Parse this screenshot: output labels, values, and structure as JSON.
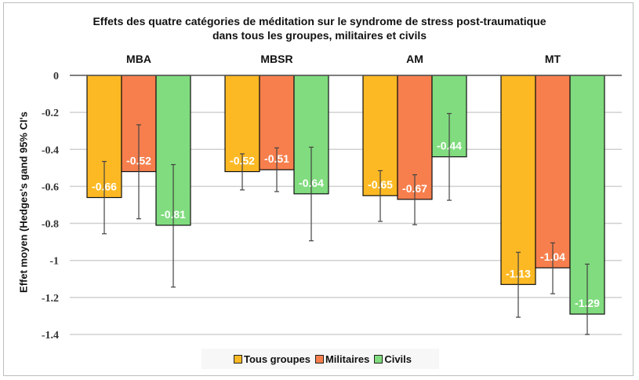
{
  "chart_data": {
    "type": "bar",
    "title": "Effets des quatre catégories de méditation sur le syndrome de stress post-traumatique",
    "subtitle": "dans tous les groupes, militaires et civils",
    "ylabel": "Effet moyen (Hedges's gand 95% CI's",
    "xlabel": "",
    "ylim": [
      -1.4,
      0
    ],
    "yticks": [
      "0",
      "-0.2",
      "-0.4",
      "-0.6",
      "-0.8",
      "-1",
      "-1.2",
      "-1.4"
    ],
    "grid": true,
    "legend_placement": "bottom",
    "categories": [
      "MBA",
      "MBSR",
      "AM",
      "MT"
    ],
    "series": [
      {
        "name": "Tous groupes",
        "color": "#FDB924",
        "values": [
          -0.66,
          -0.52,
          -0.65,
          -1.13
        ],
        "labels": [
          "-0.66",
          "-0.52",
          "-0.65",
          "-1.13"
        ],
        "ci": [
          [
            -0.465,
            -0.856
          ],
          [
            -0.424,
            -0.619
          ],
          [
            -0.515,
            -0.789
          ],
          [
            -0.956,
            -1.307
          ]
        ]
      },
      {
        "name": "Militaires",
        "color": "#F77F4D",
        "values": [
          -0.52,
          -0.51,
          -0.67,
          -1.04
        ],
        "labels": [
          "-0.52",
          "-0.51",
          "-0.67",
          "-1.04"
        ],
        "ci": [
          [
            -0.267,
            -0.775
          ],
          [
            -0.392,
            -0.628
          ],
          [
            -0.537,
            -0.807
          ],
          [
            -0.905,
            -1.18
          ]
        ]
      },
      {
        "name": "Civils",
        "color": "#80DC7E",
        "values": [
          -0.81,
          -0.64,
          -0.44,
          -1.29
        ],
        "labels": [
          "-0.81",
          "-0.64",
          "-0.44",
          "-1.29"
        ],
        "ci": [
          [
            -0.482,
            -1.144
          ],
          [
            -0.388,
            -0.894
          ],
          [
            -0.206,
            -0.675
          ],
          [
            -1.02,
            -1.4
          ]
        ]
      }
    ]
  }
}
